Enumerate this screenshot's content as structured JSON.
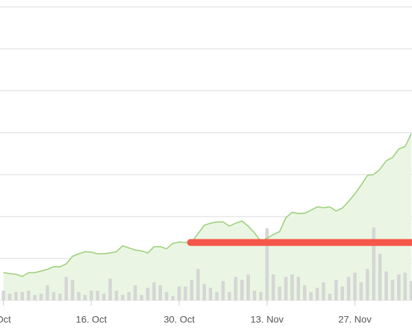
{
  "chart_data": {
    "type": "line",
    "x": [
      1,
      2,
      3,
      4,
      5,
      6,
      7,
      8,
      9,
      10,
      11,
      12,
      13,
      14,
      15,
      16,
      17,
      18,
      19,
      20,
      21,
      22,
      23,
      24,
      25,
      26,
      27,
      28,
      29,
      30,
      31,
      32,
      33,
      34,
      35,
      36,
      37,
      38,
      39,
      40,
      41,
      42,
      43,
      44,
      45,
      46,
      47,
      48,
      49,
      50,
      51,
      52,
      53,
      54,
      55,
      56,
      57,
      58,
      59,
      60,
      61,
      62,
      63,
      64,
      65,
      66
    ],
    "series": [
      {
        "color": "#a3d283",
        "fill": "#eaf6e3",
        "values": [
          0.66,
          0.64,
          0.62,
          0.57,
          0.66,
          0.66,
          0.7,
          0.74,
          0.8,
          0.8,
          0.87,
          1.05,
          1.11,
          1.16,
          1.15,
          1.11,
          1.11,
          1.13,
          1.16,
          1.3,
          1.25,
          1.2,
          1.18,
          1.13,
          1.28,
          1.28,
          1.23,
          1.36,
          1.39,
          1.38,
          1.39,
          1.59,
          1.79,
          1.84,
          1.87,
          1.87,
          1.77,
          1.84,
          1.89,
          1.77,
          1.61,
          1.41,
          1.48,
          1.57,
          1.64,
          1.97,
          2.1,
          2.07,
          2.08,
          2.15,
          2.23,
          2.21,
          2.23,
          2.13,
          2.2,
          2.36,
          2.54,
          2.75,
          2.98,
          3.0,
          3.13,
          3.33,
          3.41,
          3.61,
          3.67,
          3.98
        ]
      }
    ],
    "bars": {
      "color": "#d6d6d6",
      "values": [
        0.23,
        0.16,
        0.2,
        0.2,
        0.23,
        0.13,
        0.16,
        0.36,
        0.2,
        0.16,
        0.56,
        0.49,
        0.2,
        0.13,
        0.23,
        0.23,
        0.16,
        0.52,
        0.23,
        0.13,
        0.2,
        0.36,
        0.13,
        0.3,
        0.43,
        0.36,
        0.2,
        0.1,
        0.33,
        0.33,
        0.49,
        0.75,
        0.39,
        0.3,
        0.2,
        0.46,
        0.2,
        0.56,
        0.49,
        0.62,
        0.23,
        0.2,
        1.72,
        0.62,
        0.33,
        0.56,
        0.62,
        0.56,
        0.36,
        0.2,
        0.3,
        0.43,
        0.16,
        0.49,
        0.33,
        0.56,
        0.66,
        0.43,
        0.75,
        1.74,
        1.11,
        0.69,
        0.49,
        0.62,
        0.66,
        0.46
      ]
    },
    "reference_line": {
      "value": 1.38,
      "from": 30.8,
      "color": "#f5584a"
    },
    "xlim": [
      0.45,
      66.1
    ],
    "xticks": [
      {
        "value": 1,
        "label": "Oct"
      },
      {
        "value": 15,
        "label": "16. Oct"
      },
      {
        "value": 29,
        "label": "30. Oct"
      },
      {
        "value": 43,
        "label": "13. Nov"
      },
      {
        "value": 57,
        "label": "27. Nov"
      }
    ],
    "ylim": [
      0,
      7
    ],
    "yticks": [
      0,
      1,
      2,
      3,
      4,
      5,
      6,
      7
    ],
    "grid": true
  }
}
